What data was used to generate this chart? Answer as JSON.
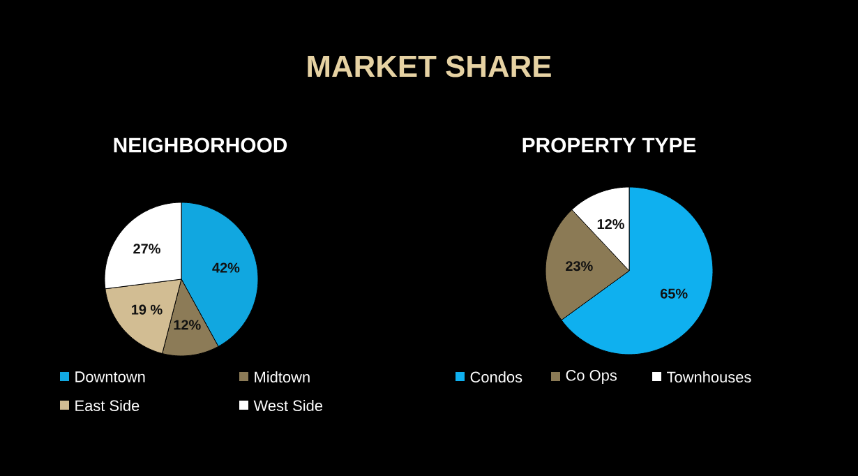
{
  "chart_data": [
    {
      "type": "pie",
      "title": "MARKET SHARE",
      "subtitle": "NEIGHBORHOOD",
      "categories": [
        "Downtown",
        "Midtown",
        "East Side",
        "West Side"
      ],
      "values": [
        42,
        12,
        19,
        27
      ],
      "colors": [
        "#11a7e0",
        "#8c7b57",
        "#d2bd93",
        "#ffffff"
      ],
      "value_labels": [
        "42%",
        "12%",
        "19 %",
        "27%"
      ],
      "legend": "bottom"
    },
    {
      "type": "pie",
      "title": "PROPERTY TYPE",
      "categories": [
        "Condos",
        "Co Ops",
        "Townhouses"
      ],
      "values": [
        65,
        23,
        12
      ],
      "colors": [
        "#0fb0ef",
        "#8b7a55",
        "#ffffff"
      ],
      "value_labels": [
        "65%",
        "23%",
        "12%"
      ],
      "legend": "bottom"
    }
  ]
}
